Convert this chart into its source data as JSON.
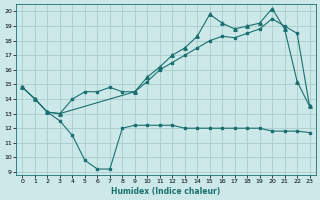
{
  "xlabel": "Humidex (Indice chaleur)",
  "background_color": "#cce8e8",
  "grid_color": "#aacccc",
  "line_color": "#1a7070",
  "xlim": [
    -0.5,
    23.5
  ],
  "ylim": [
    8.8,
    20.5
  ],
  "yticks": [
    9,
    10,
    11,
    12,
    13,
    14,
    15,
    16,
    17,
    18,
    19,
    20
  ],
  "xticks": [
    0,
    1,
    2,
    3,
    4,
    5,
    6,
    7,
    8,
    9,
    10,
    11,
    12,
    13,
    14,
    15,
    16,
    17,
    18,
    19,
    20,
    21,
    22,
    23
  ],
  "line1_x": [
    0,
    1,
    2,
    3,
    4,
    5,
    6,
    7,
    8,
    9,
    10,
    11,
    12,
    13,
    14,
    15,
    16,
    17,
    18,
    19,
    20,
    21,
    22,
    23
  ],
  "line1_y": [
    14.8,
    14.0,
    13.1,
    12.5,
    11.5,
    9.8,
    9.2,
    9.2,
    12.0,
    12.2,
    12.2,
    12.2,
    12.2,
    12.0,
    12.0,
    12.0,
    12.0,
    12.0,
    12.0,
    12.0,
    11.8,
    11.8,
    11.8,
    11.7
  ],
  "line2_x": [
    0,
    1,
    2,
    3,
    9,
    10,
    11,
    12,
    13,
    14,
    15,
    16,
    17,
    18,
    19,
    20,
    21,
    22,
    23
  ],
  "line2_y": [
    14.8,
    14.0,
    13.1,
    13.0,
    14.5,
    15.5,
    16.2,
    17.0,
    17.5,
    18.3,
    19.8,
    19.2,
    18.8,
    19.0,
    19.2,
    20.2,
    18.8,
    15.2,
    13.5
  ],
  "line3_x": [
    0,
    1,
    2,
    3,
    4,
    5,
    6,
    7,
    8,
    9,
    10,
    11,
    12,
    13,
    14,
    15,
    16,
    17,
    18,
    19,
    20,
    21,
    22,
    23
  ],
  "line3_y": [
    14.8,
    14.0,
    13.1,
    13.0,
    14.0,
    14.5,
    14.5,
    14.8,
    14.5,
    14.5,
    15.2,
    16.0,
    16.5,
    17.0,
    17.5,
    18.0,
    18.3,
    18.2,
    18.5,
    18.8,
    19.5,
    19.0,
    18.5,
    13.5
  ]
}
